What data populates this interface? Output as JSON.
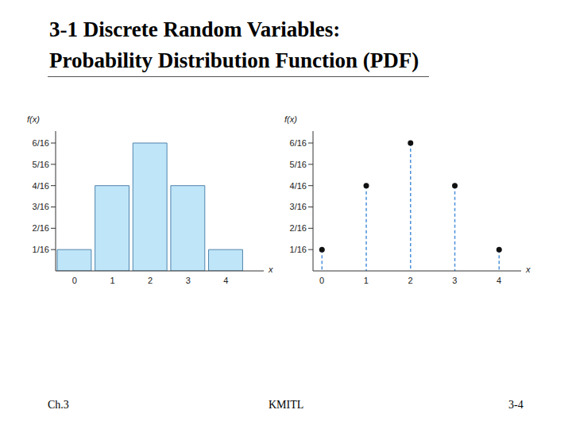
{
  "slide": {
    "title": [
      "3-1 Discrete Random Variables:",
      "Probability Distribution Function (PDF)"
    ],
    "footer": [
      "Ch.3",
      "KMITL",
      "3-4"
    ]
  },
  "chart_data": [
    {
      "type": "histogram",
      "bins": [
        -0.5,
        0.5,
        1.5,
        2.5,
        3.5,
        4.5
      ],
      "values": [
        0.0625,
        0.25,
        0.375,
        0.25,
        0.0625
      ],
      "color": "#bfe5f8",
      "xlim": [
        -0.5,
        5
      ],
      "xticks": [
        0,
        1,
        2,
        3,
        4
      ],
      "ylim": [
        0,
        0.41
      ],
      "yticks": [
        {
          "value": 0.0625,
          "label": "1/16"
        },
        {
          "value": 0.125,
          "label": "2/16"
        },
        {
          "value": 0.1875,
          "label": "3/16"
        },
        {
          "value": 0.25,
          "label": "4/16"
        },
        {
          "value": 0.3125,
          "label": "5/16"
        },
        {
          "value": 0.375,
          "label": "6/16"
        }
      ],
      "x_label": "x",
      "y_label": "f(x)",
      "grid": false
    },
    {
      "type": "stem",
      "x": [
        0,
        1,
        2,
        3,
        4
      ],
      "values": [
        0.0625,
        0.25,
        0.375,
        0.25,
        0.0625
      ],
      "color": "#4a90d9",
      "marker": "circle",
      "line_style": "dashed",
      "xlim": [
        -0.2,
        4.5
      ],
      "xticks": [
        0,
        1,
        2,
        3,
        4
      ],
      "ylim": [
        0,
        0.41
      ],
      "yticks": [
        {
          "value": 0.0625,
          "label": "1/16"
        },
        {
          "value": 0.125,
          "label": "2/16"
        },
        {
          "value": 0.1875,
          "label": "3/16"
        },
        {
          "value": 0.25,
          "label": "4/16"
        },
        {
          "value": 0.3125,
          "label": "5/16"
        },
        {
          "value": 0.375,
          "label": "6/16"
        }
      ],
      "x_label": "x",
      "y_label": "f(x)",
      "grid": false
    }
  ]
}
